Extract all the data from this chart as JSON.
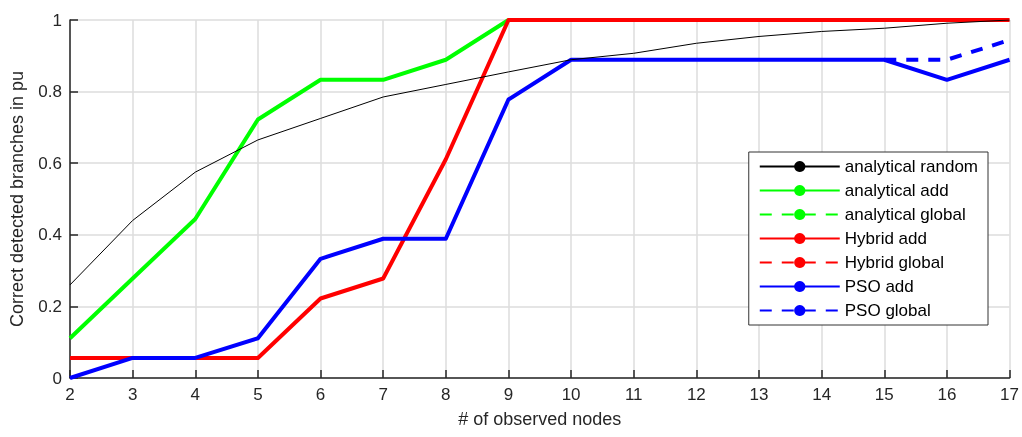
{
  "chart_data": {
    "type": "line",
    "xlabel": "# of observed nodes",
    "ylabel": "Correct detected branches in pu",
    "x": [
      2,
      3,
      4,
      5,
      6,
      7,
      8,
      9,
      10,
      11,
      12,
      13,
      14,
      15,
      16,
      17
    ],
    "xlim": [
      2,
      17
    ],
    "xticks": [
      2,
      3,
      4,
      5,
      6,
      7,
      8,
      9,
      10,
      11,
      12,
      13,
      14,
      15,
      16,
      17
    ],
    "ylim": [
      0,
      1
    ],
    "yticks": [
      0,
      0.2,
      0.4,
      0.6,
      0.8,
      1
    ],
    "grid": true,
    "legend": "right",
    "marker": "none",
    "series": [
      {
        "name": "analytical random",
        "color": "#000000",
        "line_style": "solid",
        "values": [
          0.26,
          0.44,
          0.575,
          0.665,
          0.725,
          0.785,
          0.82,
          0.855,
          0.889,
          0.907,
          0.935,
          0.954,
          0.968,
          0.977,
          0.991,
          1.0
        ]
      },
      {
        "name": "analytical add",
        "color": "#00ff00",
        "line_style": "solid",
        "values": [
          0.111,
          0.278,
          0.444,
          0.722,
          0.833,
          0.833,
          0.889,
          1.0,
          null,
          null,
          null,
          null,
          null,
          null,
          null,
          null
        ]
      },
      {
        "name": "analytical global",
        "color": "#00ff00",
        "line_style": "dashed",
        "values": [
          null,
          null,
          null,
          null,
          null,
          null,
          null,
          null,
          null,
          null,
          null,
          null,
          null,
          null,
          null,
          null
        ]
      },
      {
        "name": "Hybrid add",
        "color": "#ff0000",
        "line_style": "solid",
        "values": [
          0.056,
          0.056,
          0.056,
          0.056,
          0.222,
          0.278,
          0.611,
          1.0,
          1.0,
          1.0,
          1.0,
          1.0,
          1.0,
          1.0,
          1.0,
          1.0
        ]
      },
      {
        "name": "Hybrid global",
        "color": "#ff0000",
        "line_style": "dashed",
        "values": [
          null,
          null,
          null,
          null,
          null,
          null,
          null,
          null,
          null,
          null,
          null,
          null,
          null,
          null,
          null,
          null
        ]
      },
      {
        "name": "PSO add",
        "color": "#0000ff",
        "line_style": "solid",
        "values": [
          0,
          0.056,
          0.056,
          0.111,
          0.333,
          0.389,
          0.389,
          0.778,
          0.889,
          0.889,
          0.889,
          0.889,
          0.889,
          0.889,
          0.833,
          0.889
        ]
      },
      {
        "name": "PSO global",
        "color": "#0000ff",
        "line_style": "dashed",
        "values": [
          null,
          null,
          null,
          null,
          null,
          null,
          null,
          null,
          null,
          null,
          null,
          null,
          null,
          0.889,
          0.889,
          0.944
        ]
      }
    ]
  }
}
